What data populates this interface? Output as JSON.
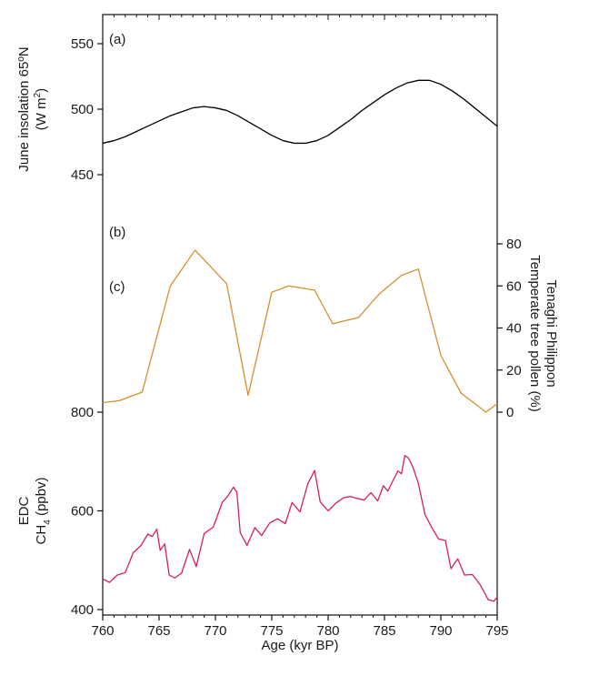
{
  "chart_data": {
    "type": "line",
    "x_axis": {
      "label": "Age (kyr BP)",
      "range": [
        760,
        795
      ],
      "ticks": [
        "760",
        "765",
        "770",
        "775",
        "780",
        "785",
        "790",
        "795"
      ]
    },
    "panels": [
      {
        "panel_label": "(a)",
        "ylabel": "June insolation 65ºN",
        "ylabel2": "(W m",
        "ylabel2_sup": "2",
        "ylabel2_end": ")",
        "ylim": [
          450,
          550
        ],
        "yticks": [
          "450",
          "500",
          "550"
        ],
        "color": "#000000",
        "series": [
          {
            "x": [
              760,
              761,
              762,
              763,
              764,
              765,
              766,
              767,
              768,
              769,
              770,
              771,
              772,
              773,
              774,
              775,
              776,
              777,
              778,
              779,
              780,
              781,
              782,
              783,
              784,
              785,
              786,
              787,
              788,
              789,
              790,
              791,
              792,
              793,
              794,
              795
            ],
            "y": [
              474,
              476,
              479,
              483,
              487,
              491,
              495,
              498,
              501,
              502,
              501,
              499,
              495,
              490,
              485,
              480,
              476,
              474,
              474,
              476,
              480,
              486,
              492,
              499,
              505,
              511,
              516,
              520,
              522,
              522,
              519,
              514,
              508,
              501,
              494,
              487
            ]
          }
        ]
      },
      {
        "panel_label": "(b)",
        "ylabel": "Tenaghi Philippon",
        "ylabel2": "Temperate tree pollen (%)",
        "ylim": [
          0,
          80
        ],
        "yticks": [
          "0",
          "20",
          "40",
          "60",
          "80"
        ],
        "color": "#d4902e",
        "series": [
          {
            "x": [
              760,
              761.5,
              763.5,
              766,
              768.2,
              771,
              772.9,
              775,
              776.5,
              778.8,
              780.4,
              782.7,
              784.5,
              786.5,
              788,
              790,
              791.8,
              794,
              795
            ],
            "y": [
              4.5,
              5.5,
              9.5,
              60,
              77,
              61,
              8,
              57,
              60,
              58,
              42,
              45,
              56,
              65,
              68,
              27,
              9,
              0,
              4
            ]
          }
        ]
      },
      {
        "panel_label": "(c)",
        "ylabel": "EDC",
        "ylabel2": "CH",
        "ylabel2_sub": "4",
        "ylabel2_end": " (ppbv)",
        "ylim": [
          400,
          800
        ],
        "yticks": [
          "400",
          "600",
          "800"
        ],
        "color": "#d81e5b",
        "series": [
          {
            "x": [
              760,
              760.6,
              761.3,
              762,
              762.7,
              763.4,
              764,
              764.4,
              764.8,
              765.1,
              765.5,
              765.9,
              766.4,
              767,
              767.7,
              768.3,
              769,
              769.8,
              770.1,
              770.6,
              771.1,
              771.6,
              771.9,
              772.2,
              772.8,
              773.5,
              774.1,
              774.8,
              775.5,
              776.2,
              776.8,
              777.5,
              778.2,
              778.8,
              779.3,
              780,
              780.7,
              781.4,
              782,
              782.6,
              783.2,
              783.8,
              784.4,
              784.9,
              785.3,
              785.7,
              786.2,
              786.5,
              786.8,
              787.1,
              787.5,
              788,
              788.6,
              789.2,
              789.8,
              790.4,
              790.9,
              791.5,
              792.1,
              792.8,
              793.5,
              794.2,
              794.7,
              795
            ],
            "y": [
              462,
              455,
              470,
              475,
              515,
              530,
              553,
              548,
              563,
              520,
              533,
              470,
              464,
              474,
              522,
              487,
              554,
              567,
              585,
              617,
              630,
              648,
              638,
              556,
              530,
              566,
              550,
              575,
              584,
              574,
              617,
              598,
              655,
              682,
              618,
              600,
              616,
              627,
              629,
              625,
              622,
              637,
              620,
              651,
              640,
              659,
              681,
              675,
              712,
              708,
              690,
              656,
              592,
              566,
              543,
              540,
              483,
              503,
              470,
              471,
              450,
              420,
              417,
              425
            ]
          }
        ]
      }
    ]
  }
}
